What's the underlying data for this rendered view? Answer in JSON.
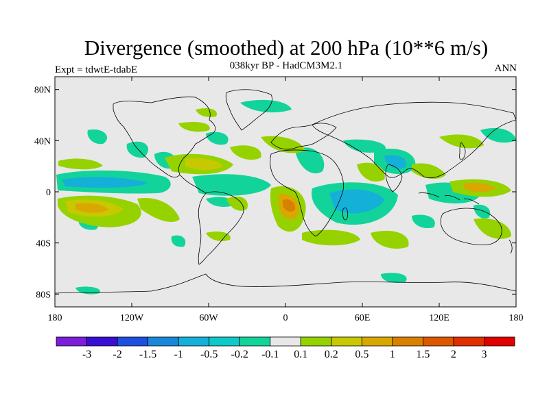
{
  "title": "Divergence (smoothed) at 200 hPa (10**6 m/s)",
  "subtitle": "038kyr BP - HadCM3M2.1",
  "left_label": "Expt = tdwtE-tdabE",
  "right_label": "ANN",
  "map": {
    "lat_ticks": [
      "80N",
      "40N",
      "0",
      "40S",
      "80S"
    ],
    "lon_ticks": [
      "180",
      "120W",
      "60W",
      "0",
      "60E",
      "120E",
      "180"
    ],
    "background_color": "#e8e8e8",
    "coastline_color": "#000000"
  },
  "colorbar": {
    "colors": [
      "#7b1fd8",
      "#3a0fd4",
      "#1f4fe0",
      "#1a88d8",
      "#14b0d8",
      "#10c8c8",
      "#12d49a",
      "#e8e8e8",
      "#96d200",
      "#c8c800",
      "#d8a800",
      "#d88000",
      "#dc5800",
      "#e03000",
      "#e00000"
    ],
    "labels": [
      "-3",
      "-2",
      "-1.5",
      "-1",
      "-0.5",
      "-0.2",
      "-0.1",
      "0.1",
      "0.2",
      "0.5",
      "1",
      "1.5",
      "2",
      "3"
    ]
  }
}
